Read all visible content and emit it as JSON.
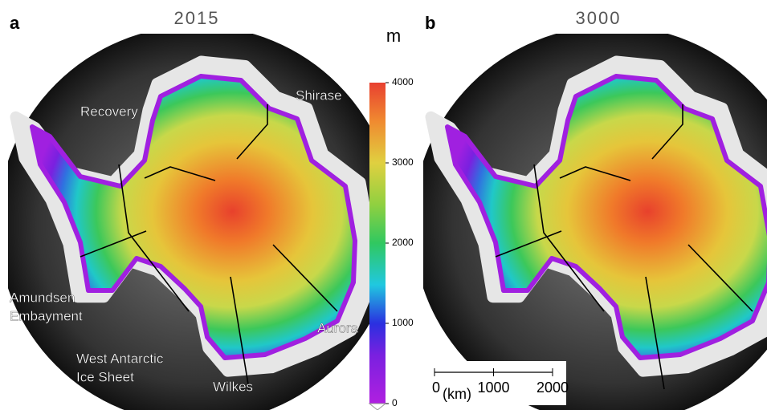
{
  "panels": [
    {
      "letter": "a",
      "title": "2015",
      "labels": [
        [
          "Recovery"
        ],
        [
          "Shirase"
        ],
        [
          "Amundsen",
          "Embayment"
        ],
        [
          "West Antarctic",
          "Ice Sheet"
        ],
        [
          "Wilkes"
        ],
        [
          "Aurora"
        ]
      ]
    },
    {
      "letter": "b",
      "title": "3000"
    }
  ],
  "colorbar": {
    "unit": "m",
    "lim": [
      0,
      4000
    ],
    "ticks": [
      0,
      1000,
      2000,
      3000,
      4000
    ]
  },
  "scale_bar": {
    "unit": "(km)",
    "lim": [
      0,
      2000
    ],
    "ticks": [
      0,
      1000,
      2000
    ]
  }
}
